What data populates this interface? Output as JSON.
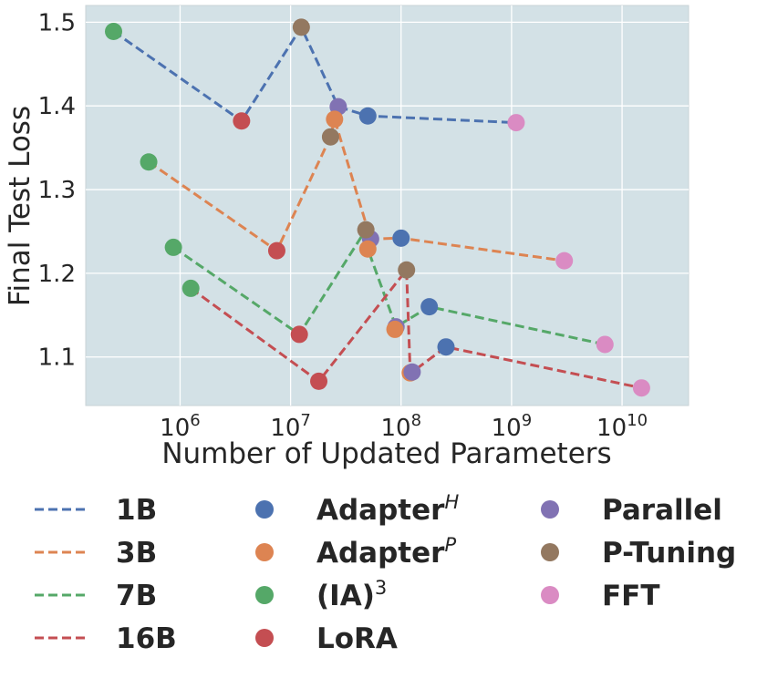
{
  "chart_data": {
    "type": "scatter",
    "xlabel": "Number of Updated Parameters",
    "ylabel": "Final Test Loss",
    "xscale": "log",
    "xlim": [
      140000,
      40000000000
    ],
    "ylim": [
      1.042,
      1.52
    ],
    "x_ticks": [
      {
        "value": 1000000,
        "base": "10",
        "exp": "6"
      },
      {
        "value": 10000000,
        "base": "10",
        "exp": "7"
      },
      {
        "value": 100000000,
        "base": "10",
        "exp": "8"
      },
      {
        "value": 1000000000,
        "base": "10",
        "exp": "9"
      },
      {
        "value": 10000000000,
        "base": "10",
        "exp": "10"
      }
    ],
    "y_ticks": [
      {
        "value": 1.1,
        "label": "1.1"
      },
      {
        "value": 1.2,
        "label": "1.2"
      },
      {
        "value": 1.3,
        "label": "1.3"
      },
      {
        "value": 1.4,
        "label": "1.4"
      },
      {
        "value": 1.5,
        "label": "1.5"
      }
    ],
    "grid": true,
    "background": "#d3e1e6",
    "methods": [
      {
        "key": "adapterH",
        "label": "Adapter",
        "sup": "H",
        "sup_italic": true,
        "color": "#4c72b0"
      },
      {
        "key": "adapterP",
        "label": "Adapter",
        "sup": "P",
        "sup_italic": true,
        "color": "#dd8452"
      },
      {
        "key": "ia3",
        "label": "(IA)",
        "sup": "3",
        "sup_italic": false,
        "color": "#55a868"
      },
      {
        "key": "lora",
        "label": "LoRA",
        "sup": "",
        "sup_italic": false,
        "color": "#c44e52"
      },
      {
        "key": "parallel",
        "label": "Parallel",
        "sup": "",
        "sup_italic": false,
        "color": "#8172b3"
      },
      {
        "key": "ptuning",
        "label": "P-Tuning",
        "sup": "",
        "sup_italic": false,
        "color": "#937860"
      },
      {
        "key": "fft",
        "label": "FFT",
        "sup": "",
        "sup_italic": false,
        "color": "#da8bc3"
      }
    ],
    "series": [
      {
        "name": "1B",
        "color": "#4c72b0",
        "points": [
          {
            "method": "ia3",
            "x": 250000,
            "y": 1.489
          },
          {
            "method": "lora",
            "x": 3600000,
            "y": 1.382
          },
          {
            "method": "ptuning",
            "x": 12500000,
            "y": 1.494
          },
          {
            "method": "parallel",
            "x": 27000000,
            "y": 1.399
          },
          {
            "method": "adapterH",
            "x": 50000000,
            "y": 1.388
          },
          {
            "method": "fft",
            "x": 1100000000,
            "y": 1.38
          }
        ]
      },
      {
        "name": "3B",
        "color": "#dd8452",
        "points": [
          {
            "method": "ia3",
            "x": 520000,
            "y": 1.333
          },
          {
            "method": "lora",
            "x": 7500000,
            "y": 1.227
          },
          {
            "method": "ptuning",
            "x": 23000000,
            "y": 1.363
          },
          {
            "method": "adapterP",
            "x": 25000000,
            "y": 1.384
          },
          {
            "method": "parallel",
            "x": 53000000,
            "y": 1.241
          },
          {
            "method": "adapterH",
            "x": 100000000,
            "y": 1.242
          },
          {
            "method": "fft",
            "x": 3000000000,
            "y": 1.215
          }
        ]
      },
      {
        "name": "7B",
        "color": "#55a868",
        "points": [
          {
            "method": "ia3",
            "x": 870000,
            "y": 1.231
          },
          {
            "method": "lora",
            "x": 12000000,
            "y": 1.127
          },
          {
            "method": "ptuning",
            "x": 48000000,
            "y": 1.252
          },
          {
            "method": "adapterP",
            "x": 50000000,
            "y": 1.229
          },
          {
            "method": "parallel",
            "x": 90000000,
            "y": 1.136
          },
          {
            "method": "adapterH",
            "x": 180000000,
            "y": 1.16
          },
          {
            "method": "fft",
            "x": 7000000000,
            "y": 1.115
          }
        ]
      },
      {
        "name": "16B",
        "color": "#c44e52",
        "points": [
          {
            "method": "ia3",
            "x": 1250000,
            "y": 1.182
          },
          {
            "method": "lora",
            "x": 18000000,
            "y": 1.071
          },
          {
            "method": "ptuning",
            "x": 112000000,
            "y": 1.204
          },
          {
            "method": "adapterP",
            "x": 121000000,
            "y": 1.081
          },
          {
            "method": "parallel",
            "x": 126000000,
            "y": 1.082
          },
          {
            "method": "adapterH",
            "x": 255000000,
            "y": 1.112
          },
          {
            "method": "fft",
            "x": 15000000000,
            "y": 1.063
          }
        ]
      }
    ],
    "extra_points": [
      {
        "method": "adapterP",
        "x": 88000000,
        "y": 1.133
      }
    ]
  }
}
